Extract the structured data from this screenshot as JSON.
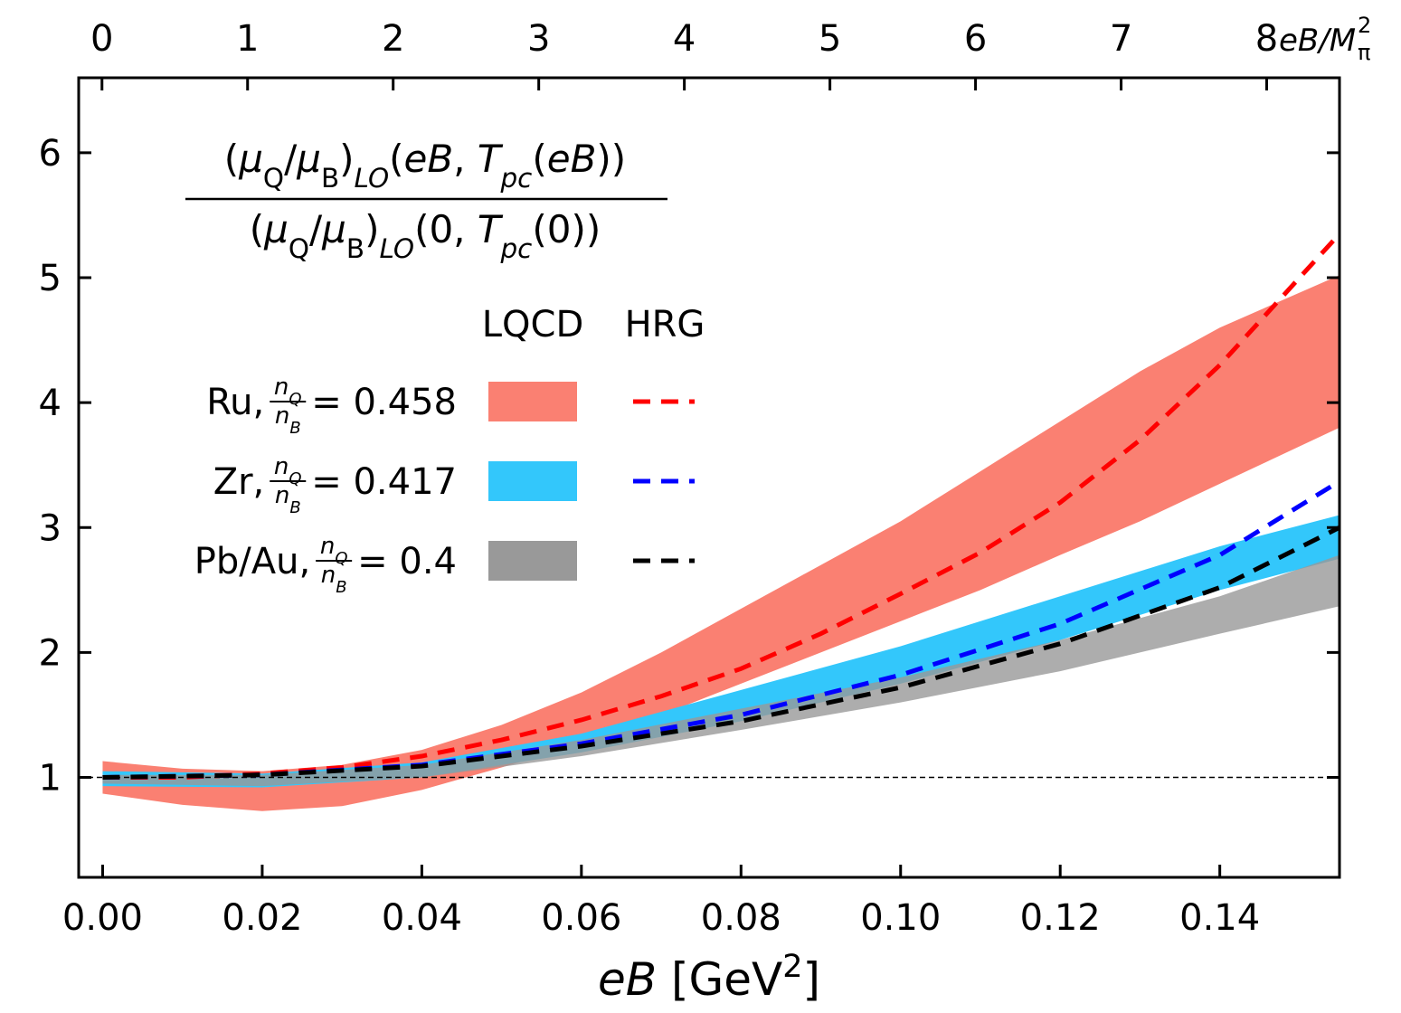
{
  "chart_data": {
    "type": "band-line",
    "formula": {
      "numerator": [
        {
          "t": "("
        },
        {
          "t": "μ",
          "s": "it"
        },
        {
          "t": "Q",
          "s": "sub"
        },
        {
          "t": "/"
        },
        {
          "t": "μ",
          "s": "it"
        },
        {
          "t": "B",
          "s": "sub"
        },
        {
          "t": ")"
        },
        {
          "t": "LO",
          "s": "itsub"
        },
        {
          "t": "("
        },
        {
          "t": "eB",
          "s": "it"
        },
        {
          "t": ", "
        },
        {
          "t": "T",
          "s": "it"
        },
        {
          "t": "pc",
          "s": "itsub"
        },
        {
          "t": "("
        },
        {
          "t": "eB",
          "s": "it"
        },
        {
          "t": "))"
        }
      ],
      "denominator": [
        {
          "t": "("
        },
        {
          "t": "μ",
          "s": "it"
        },
        {
          "t": "Q",
          "s": "sub"
        },
        {
          "t": "/"
        },
        {
          "t": "μ",
          "s": "it"
        },
        {
          "t": "B",
          "s": "sub"
        },
        {
          "t": ")"
        },
        {
          "t": "LO",
          "s": "itsub"
        },
        {
          "t": "(0, "
        },
        {
          "t": "T",
          "s": "it"
        },
        {
          "t": "pc",
          "s": "itsub"
        },
        {
          "t": "(0))"
        }
      ]
    },
    "x_label": [
      {
        "t": "eB",
        "s": "it"
      },
      {
        "t": " [GeV"
      },
      {
        "t": "2",
        "s": "sup"
      },
      {
        "t": "]"
      }
    ],
    "x2_label": {
      "main": "eB/M",
      "sub": "π",
      "sup": "2"
    },
    "legend_headers": {
      "band": "LQCD",
      "line": "HRG"
    },
    "fraction": {
      "num": "n",
      "num_sub": "Q",
      "den": "n",
      "den_sub": "B"
    },
    "xlim": [
      -0.003,
      0.155
    ],
    "xticks": [
      {
        "value": 0,
        "label": "0.00"
      },
      0.02,
      0.04,
      0.06,
      0.08,
      {
        "value": 0.1,
        "label": "0.10"
      },
      0.12,
      0.14
    ],
    "x2lim": [
      -0.16,
      8.5
    ],
    "x2ticks": [
      0,
      1,
      2,
      3,
      4,
      5,
      6,
      7,
      8
    ],
    "ylim": [
      0.2,
      6.6
    ],
    "yticks": [
      1,
      2,
      3,
      4,
      5,
      6
    ],
    "reference_line": 1,
    "series": [
      {
        "name": "Ru,",
        "ratio_text": "= 0.458",
        "band": {
          "color": "#fa8072",
          "opacity": 1,
          "x": [
            0,
            0.01,
            0.02,
            0.03,
            0.04,
            0.05,
            0.06,
            0.07,
            0.08,
            0.09,
            0.1,
            0.11,
            0.12,
            0.13,
            0.14,
            0.155
          ],
          "lower": [
            0.87,
            0.78,
            0.73,
            0.77,
            0.9,
            1.08,
            1.27,
            1.5,
            1.75,
            2.0,
            2.25,
            2.5,
            2.78,
            3.05,
            3.35,
            3.8
          ],
          "upper": [
            1.13,
            1.07,
            1.05,
            1.1,
            1.22,
            1.42,
            1.68,
            2.0,
            2.35,
            2.7,
            3.05,
            3.45,
            3.85,
            4.25,
            4.6,
            5.02
          ]
        },
        "hrg": {
          "color": "#ff0000",
          "x": [
            0,
            0.01,
            0.02,
            0.03,
            0.04,
            0.05,
            0.06,
            0.07,
            0.08,
            0.09,
            0.1,
            0.11,
            0.12,
            0.13,
            0.14,
            0.155
          ],
          "values": [
            1.0,
            1.0,
            1.03,
            1.08,
            1.17,
            1.3,
            1.46,
            1.65,
            1.87,
            2.15,
            2.47,
            2.8,
            3.2,
            3.7,
            4.3,
            5.35
          ]
        }
      },
      {
        "name": "Zr,",
        "ratio_text": "= 0.417",
        "band": {
          "color": "#33c7fb",
          "opacity": 1,
          "x": [
            0,
            0.02,
            0.04,
            0.06,
            0.08,
            0.1,
            0.12,
            0.14,
            0.155
          ],
          "lower": [
            0.93,
            0.92,
            1.0,
            1.2,
            1.45,
            1.75,
            2.1,
            2.5,
            2.75
          ],
          "upper": [
            1.05,
            1.03,
            1.12,
            1.35,
            1.7,
            2.05,
            2.45,
            2.85,
            3.1
          ]
        },
        "hrg": {
          "color": "#0000ff",
          "x": [
            0,
            0.02,
            0.04,
            0.06,
            0.08,
            0.1,
            0.12,
            0.14,
            0.155
          ],
          "values": [
            1.0,
            1.02,
            1.1,
            1.27,
            1.5,
            1.82,
            2.23,
            2.78,
            3.37
          ]
        }
      },
      {
        "name": "Pb/Au,",
        "ratio_text": "= 0.4",
        "band": {
          "color": "#999999",
          "opacity": 0.8,
          "x": [
            0,
            0.02,
            0.04,
            0.06,
            0.08,
            0.1,
            0.12,
            0.14,
            0.155
          ],
          "lower": [
            0.95,
            0.93,
            1.0,
            1.17,
            1.38,
            1.6,
            1.85,
            2.15,
            2.37
          ],
          "upper": [
            1.02,
            1.02,
            1.1,
            1.3,
            1.55,
            1.8,
            2.1,
            2.45,
            2.78
          ]
        },
        "hrg": {
          "color": "#000000",
          "x": [
            0,
            0.02,
            0.04,
            0.06,
            0.08,
            0.1,
            0.12,
            0.14,
            0.155
          ],
          "values": [
            1.0,
            1.02,
            1.09,
            1.25,
            1.45,
            1.72,
            2.07,
            2.52,
            3.0
          ]
        }
      }
    ]
  }
}
